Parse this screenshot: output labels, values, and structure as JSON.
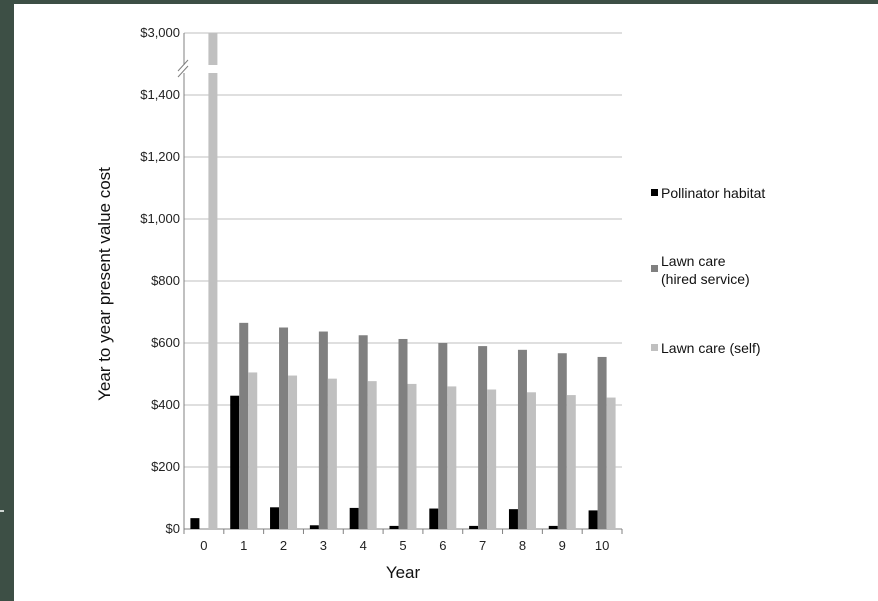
{
  "chart_data": {
    "type": "bar",
    "title": "",
    "xlabel": "Year",
    "ylabel": "Year to year present value cost",
    "categories": [
      "0",
      "1",
      "2",
      "3",
      "4",
      "5",
      "6",
      "7",
      "8",
      "9",
      "10"
    ],
    "y_ticks": [
      "$0",
      "$200",
      "$400",
      "$600",
      "$800",
      "$1,000",
      "$1,200",
      "$1,400",
      "$3,000"
    ],
    "y_tick_values": [
      0,
      200,
      400,
      600,
      800,
      1000,
      1200,
      1400,
      3000
    ],
    "ylim": [
      0,
      3000
    ],
    "axis_break": {
      "from": 1450,
      "to": 2950
    },
    "grid": true,
    "legend_position": "right",
    "series": [
      {
        "name": "Pollinator habitat",
        "color": "#000000",
        "values": [
          35,
          430,
          70,
          12,
          68,
          10,
          66,
          10,
          64,
          10,
          60
        ]
      },
      {
        "name": "Lawn care\n(hired service)",
        "name_lines": [
          "Lawn care",
          "(hired service)"
        ],
        "color": "#808080",
        "values": [
          0,
          665,
          650,
          637,
          625,
          613,
          600,
          590,
          578,
          567,
          555
        ]
      },
      {
        "name": "Lawn care (self)",
        "color": "#c0c0c0",
        "values": [
          3000,
          505,
          495,
          485,
          477,
          468,
          460,
          450,
          441,
          432,
          424
        ]
      }
    ]
  }
}
